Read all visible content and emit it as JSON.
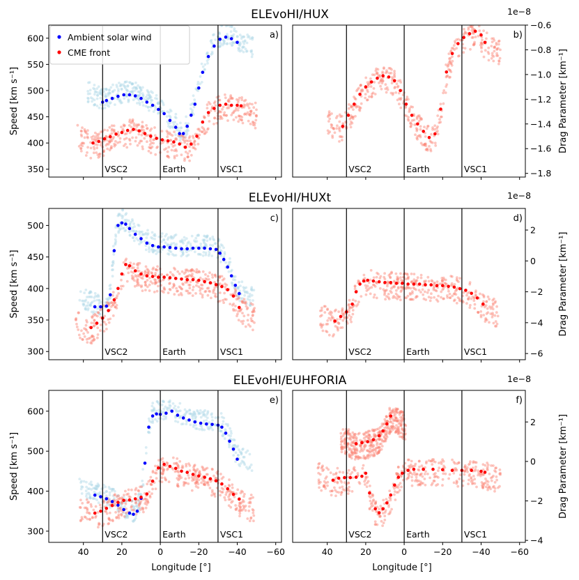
{
  "figure": {
    "rows": [
      {
        "title": "ELEvoHI/HUX",
        "drag_multiplier": "1e−8"
      },
      {
        "title": "ELEvoHI/HUXt",
        "drag_multiplier": "1e−8"
      },
      {
        "title": "ELEvoHI/EUHFORIA",
        "drag_multiplier": "1e−8"
      }
    ],
    "left_ylabel": "Speed [km s⁻¹]",
    "right_ylabel": "Drag Parameter [km⁻¹]",
    "xlabel": "Longitude [°]",
    "legend": {
      "ambient": "Ambient solar wind",
      "cme": "CME front",
      "placement": "upper-left of panel a"
    },
    "vlines": [
      {
        "x": 30,
        "label": "VSC2"
      },
      {
        "x": 0,
        "label": "Earth"
      },
      {
        "x": -30,
        "label": "VSC1"
      }
    ],
    "colors": {
      "ambient_spread": "#add8e6",
      "ambient_median": "#0000ff",
      "cme_spread": "#fa8072",
      "cme_median": "#ff0000"
    }
  },
  "chart_data": [
    {
      "panel": "a)",
      "type": "scatter",
      "title": "ELEvoHI/HUX",
      "xlabel": "",
      "ylabel": "Speed [km s⁻¹]",
      "xlim": [
        58,
        -63
      ],
      "ylim": [
        335,
        625
      ],
      "yticks": [
        350,
        400,
        450,
        500,
        550,
        600
      ],
      "xticks": [
        40,
        20,
        0,
        -20,
        -40,
        -60
      ],
      "show_xticklabels": false,
      "series": [
        {
          "name": "Ambient solar wind",
          "x": [
            30,
            28,
            25,
            22,
            19,
            16,
            13,
            10,
            7,
            4,
            1,
            -2,
            -5,
            -8,
            -10,
            -12,
            -14,
            -16,
            -18,
            -20,
            -22,
            -25,
            -28,
            -31,
            -34,
            -37,
            -40
          ],
          "y": [
            478,
            481,
            485,
            489,
            492,
            492,
            490,
            485,
            478,
            472,
            464,
            456,
            443,
            430,
            418,
            418,
            432,
            453,
            474,
            505,
            535,
            565,
            585,
            598,
            602,
            599,
            592
          ]
        },
        {
          "name": "CME front",
          "x": [
            35,
            32,
            29,
            26,
            23,
            20,
            17,
            14,
            11,
            8,
            5,
            2,
            -1,
            -4,
            -7,
            -10,
            -13,
            -16,
            -19,
            -22,
            -25,
            -28,
            -31,
            -34,
            -37,
            -40,
            -42
          ],
          "y": [
            400,
            403,
            408,
            412,
            417,
            420,
            424,
            426,
            423,
            418,
            413,
            409,
            406,
            404,
            402,
            398,
            392,
            398,
            413,
            440,
            458,
            466,
            472,
            474,
            472,
            472,
            471
          ]
        }
      ]
    },
    {
      "panel": "b)",
      "type": "scatter",
      "title": "",
      "xlabel": "",
      "ylabel": "Drag Parameter [km⁻¹]",
      "y_scale_label": "1e−8",
      "xlim": [
        58,
        -63
      ],
      "ylim": [
        -1.83,
        -0.6
      ],
      "yticks": [
        -1.8,
        -1.6,
        -1.4,
        -1.2,
        -1.0,
        -0.8,
        -0.6
      ],
      "xticks": [
        40,
        20,
        0,
        -20,
        -40,
        -60
      ],
      "show_xticklabels": false,
      "series": [
        {
          "name": "CME front",
          "x": [
            32,
            29,
            26,
            23,
            20,
            17,
            14,
            11,
            8,
            5,
            2,
            -1,
            -4,
            -7,
            -10,
            -13,
            -16,
            -19,
            -22,
            -25,
            -28,
            -31,
            -34,
            -37,
            -40,
            -42
          ],
          "y": [
            -1.42,
            -1.33,
            -1.24,
            -1.16,
            -1.1,
            -1.06,
            -1.03,
            -1.01,
            -1.02,
            -1.05,
            -1.13,
            -1.24,
            -1.33,
            -1.4,
            -1.46,
            -1.51,
            -1.48,
            -1.28,
            -0.98,
            -0.83,
            -0.75,
            -0.7,
            -0.67,
            -0.65,
            -0.68,
            -0.74
          ]
        }
      ]
    },
    {
      "panel": "c)",
      "type": "scatter",
      "title": "ELEvoHI/HUXt",
      "xlabel": "",
      "ylabel": "Speed [km s⁻¹]",
      "xlim": [
        58,
        -63
      ],
      "ylim": [
        287,
        527
      ],
      "yticks": [
        300,
        350,
        400,
        450,
        500
      ],
      "xticks": [
        40,
        20,
        0,
        -20,
        -40,
        -60
      ],
      "show_xticklabels": false,
      "series": [
        {
          "name": "Ambient solar wind",
          "x": [
            34,
            31,
            28,
            26,
            24,
            22,
            20,
            18,
            16,
            13,
            10,
            7,
            4,
            1,
            -2,
            -5,
            -8,
            -11,
            -14,
            -17,
            -20,
            -23,
            -26,
            -29,
            -31,
            -33,
            -35,
            -37,
            -39,
            -41
          ],
          "y": [
            371,
            371,
            372,
            390,
            460,
            500,
            504,
            502,
            495,
            486,
            479,
            472,
            468,
            466,
            466,
            465,
            464,
            463,
            463,
            464,
            464,
            464,
            463,
            462,
            456,
            446,
            434,
            420,
            405,
            392
          ]
        },
        {
          "name": "CME front",
          "x": [
            36,
            33,
            30,
            27,
            24,
            22,
            20,
            18,
            16,
            13,
            10,
            7,
            4,
            1,
            -2,
            -5,
            -8,
            -11,
            -14,
            -17,
            -20,
            -23,
            -26,
            -29,
            -32,
            -35,
            -38,
            -41
          ],
          "y": [
            338,
            345,
            353,
            365,
            382,
            400,
            423,
            438,
            436,
            428,
            423,
            420,
            419,
            418,
            418,
            417,
            416,
            415,
            414,
            414,
            413,
            411,
            409,
            406,
            403,
            398,
            388,
            370
          ]
        }
      ]
    },
    {
      "panel": "d)",
      "type": "scatter",
      "title": "",
      "xlabel": "",
      "ylabel": "Drag Parameter [km⁻¹]",
      "y_scale_label": "1e−8",
      "xlim": [
        58,
        -63
      ],
      "ylim": [
        -6.4,
        3.4
      ],
      "yticks": [
        -6,
        -4,
        -2,
        0,
        2
      ],
      "xticks": [
        40,
        20,
        0,
        -20,
        -40,
        -60
      ],
      "show_xticklabels": false,
      "series": [
        {
          "name": "CME front",
          "x": [
            36,
            33,
            30,
            27,
            25,
            23,
            21,
            19,
            16,
            13,
            10,
            7,
            4,
            1,
            -2,
            -5,
            -8,
            -11,
            -14,
            -17,
            -20,
            -23,
            -26,
            -29,
            -32,
            -35,
            -38,
            -41
          ],
          "y": [
            -3.9,
            -3.6,
            -3.3,
            -2.8,
            -2.0,
            -1.5,
            -1.3,
            -1.25,
            -1.3,
            -1.35,
            -1.4,
            -1.4,
            -1.45,
            -1.45,
            -1.5,
            -1.5,
            -1.5,
            -1.55,
            -1.55,
            -1.6,
            -1.6,
            -1.65,
            -1.7,
            -1.8,
            -1.9,
            -2.1,
            -2.4,
            -2.8
          ]
        }
      ]
    },
    {
      "panel": "e)",
      "type": "scatter",
      "title": "ELEvoHI/EUHFORIA",
      "xlabel": "Longitude [°]",
      "ylabel": "Speed [km s⁻¹]",
      "xlim": [
        58,
        -63
      ],
      "ylim": [
        272,
        652
      ],
      "yticks": [
        300,
        400,
        500,
        600
      ],
      "xticks": [
        40,
        20,
        0,
        -20,
        -40,
        -60
      ],
      "show_xticklabels": true,
      "series": [
        {
          "name": "Ambient solar wind",
          "x": [
            34,
            31,
            28,
            25,
            22,
            19,
            16,
            14,
            12,
            10,
            8,
            6,
            4,
            2,
            0,
            -3,
            -6,
            -9,
            -12,
            -15,
            -18,
            -21,
            -24,
            -27,
            -30,
            -32,
            -34,
            -36,
            -38,
            -40
          ],
          "y": [
            390,
            386,
            381,
            374,
            365,
            354,
            345,
            342,
            350,
            382,
            470,
            560,
            588,
            593,
            592,
            595,
            600,
            590,
            583,
            578,
            573,
            570,
            568,
            567,
            565,
            560,
            545,
            525,
            505,
            480
          ]
        },
        {
          "name": "CME front",
          "x": [
            34,
            31,
            28,
            25,
            22,
            19,
            16,
            13,
            10,
            7,
            4,
            1,
            -2,
            -5,
            -8,
            -11,
            -14,
            -17,
            -20,
            -23,
            -26,
            -29,
            -32,
            -35,
            -38,
            -41
          ],
          "y": [
            345,
            350,
            357,
            364,
            372,
            377,
            378,
            381,
            385,
            393,
            425,
            458,
            467,
            462,
            457,
            450,
            447,
            442,
            438,
            435,
            431,
            426,
            418,
            406,
            392,
            380
          ]
        }
      ]
    },
    {
      "panel": "f)",
      "type": "scatter",
      "title": "",
      "xlabel": "Longitude [°]",
      "ylabel": "Drag Parameter [km⁻¹]",
      "y_scale_label": "1e−8",
      "xlim": [
        58,
        -63
      ],
      "ylim": [
        -4.1,
        3.6
      ],
      "yticks": [
        -4,
        -2,
        0,
        2
      ],
      "xticks": [
        40,
        20,
        0,
        -20,
        -40,
        -60
      ],
      "show_xticklabels": true,
      "series": [
        {
          "name": "CME front",
          "x": [
            37,
            34,
            31,
            28,
            25,
            22,
            20,
            18,
            15,
            13,
            11,
            9,
            7,
            5,
            3,
            1,
            -2,
            -5,
            -10,
            -15,
            -20,
            -25,
            -30,
            -35,
            -40,
            -42
          ],
          "y": [
            -0.95,
            -0.85,
            -0.82,
            -0.82,
            -0.8,
            -0.75,
            -0.6,
            -1.6,
            -2.4,
            -2.6,
            -2.4,
            -2.1,
            -1.7,
            -1.2,
            -0.8,
            -0.6,
            -0.45,
            -0.4,
            -0.4,
            -0.4,
            -0.42,
            -0.45,
            -0.45,
            -0.45,
            -0.5,
            -0.55
          ]
        },
        {
          "name": "CME front",
          "x": [
            25,
            22,
            19,
            16,
            13,
            11,
            9,
            7
          ],
          "y": [
            0.9,
            0.95,
            1.0,
            1.1,
            1.3,
            1.55,
            1.9,
            2.3
          ]
        }
      ]
    }
  ]
}
